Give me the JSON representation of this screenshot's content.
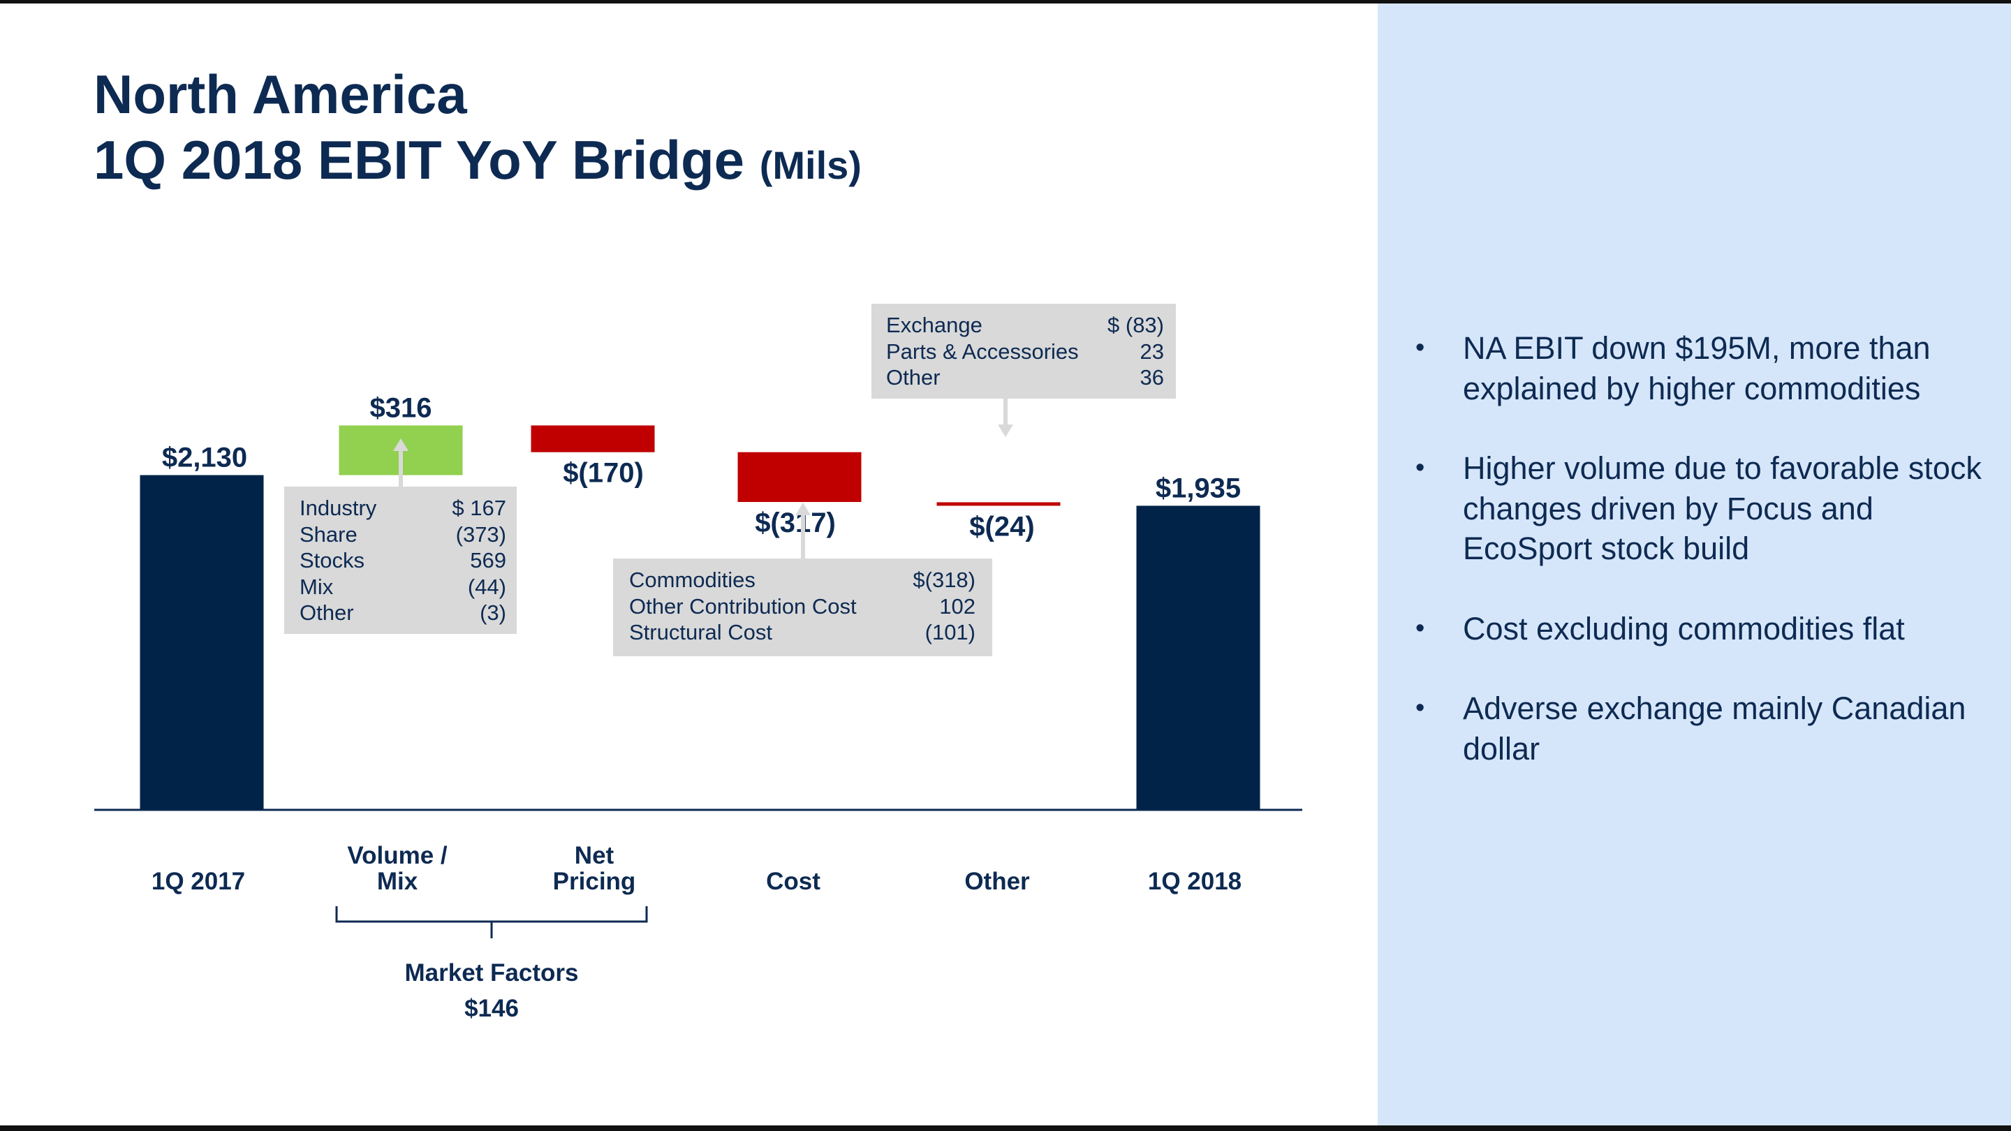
{
  "header": {
    "title_line1": "North America",
    "title_line2": "1Q 2018 EBIT YoY Bridge",
    "title_unit": "(Mils)"
  },
  "chart_data": {
    "type": "bar",
    "subtype": "waterfall",
    "categories": [
      "1Q 2017",
      "Volume / Mix",
      "Net Pricing",
      "Cost",
      "Other",
      "1Q 2018"
    ],
    "values": [
      2130,
      316,
      -170,
      -317,
      -24,
      1935
    ],
    "value_labels": [
      "$2,130",
      "$316",
      "$(170)",
      "$(317)",
      "$(24)",
      "$1,935"
    ],
    "bar_roles": [
      "total",
      "delta",
      "delta",
      "delta",
      "delta",
      "total"
    ],
    "colors": {
      "total": "#002347",
      "increase": "#92d050",
      "decrease": "#c00000",
      "other_line": "#c00000",
      "callout_bg": "#d9d9d9",
      "text": "#0d2a52",
      "panel": "#d6e6fa",
      "arrow": "#d9d9d9"
    },
    "group_bracket": {
      "label": "Market Factors",
      "value": "$146",
      "spans": [
        "Volume / Mix",
        "Net Pricing"
      ]
    },
    "callouts": [
      {
        "for": "Volume / Mix",
        "rows": [
          {
            "label": "Industry",
            "value": "$ 167"
          },
          {
            "label": "Share",
            "value": "(373)"
          },
          {
            "label": "Stocks",
            "value": "569"
          },
          {
            "label": "Mix",
            "value": "(44)"
          },
          {
            "label": "Other",
            "value": "(3)"
          }
        ]
      },
      {
        "for": "Cost",
        "rows": [
          {
            "label": "Commodities",
            "value": "$(318)"
          },
          {
            "label": "Other Contribution Cost",
            "value": "102"
          },
          {
            "label": "Structural Cost",
            "value": "(101)"
          }
        ]
      },
      {
        "for": "Other",
        "rows": [
          {
            "label": "Exchange",
            "value": "$ (83)"
          },
          {
            "label": "Parts & Accessories",
            "value": "23"
          },
          {
            "label": "Other",
            "value": "36"
          }
        ]
      }
    ],
    "grid": false,
    "legend": "none"
  },
  "bullets": [
    "NA EBIT down $195M, more than explained by higher commodities",
    "Higher volume due to favorable stock changes driven by Focus and EcoSport stock build",
    "Cost excluding commodities flat",
    "Adverse exchange mainly Canadian dollar"
  ]
}
